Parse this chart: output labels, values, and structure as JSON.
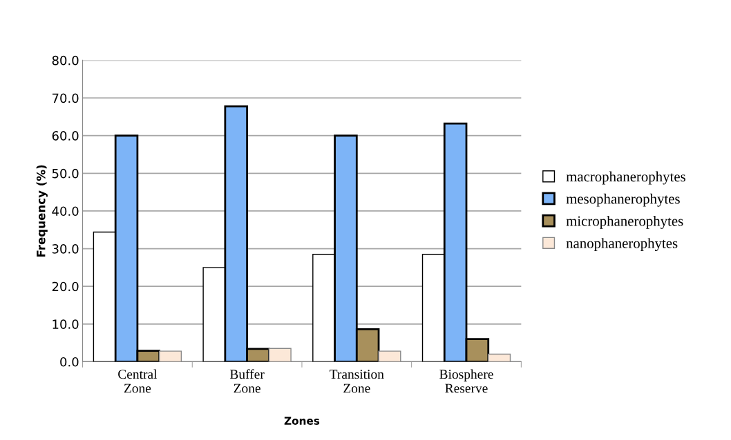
{
  "chart_data": {
    "type": "bar",
    "xlabel": "Zones",
    "ylabel": "Frequency (%)",
    "categories": [
      "Central\nZone",
      "Buffer\nZone",
      "Transition\nZone",
      "Biosphere\nReserve"
    ],
    "series": [
      {
        "name": "macrophanerophytes",
        "color": "#ffffff",
        "values": [
          34.4,
          25.0,
          28.5,
          28.5
        ]
      },
      {
        "name": "mesophanerophytes",
        "color": "#7db4f7",
        "values": [
          60.0,
          67.8,
          60.0,
          63.2
        ]
      },
      {
        "name": "microphanerophytes",
        "color": "#a8905c",
        "values": [
          2.9,
          3.4,
          8.6,
          6.0
        ]
      },
      {
        "name": "nanophanerophytes",
        "color": "#fce8d8",
        "values": [
          2.8,
          3.5,
          2.8,
          2.0
        ]
      }
    ],
    "ylim": [
      0,
      80
    ],
    "yticks": [
      {
        "value": 0,
        "label": "0.0"
      },
      {
        "value": 10,
        "label": "10.0"
      },
      {
        "value": 20,
        "label": "20.0"
      },
      {
        "value": 30,
        "label": "30.0"
      },
      {
        "value": 40,
        "label": "40.0"
      },
      {
        "value": 50,
        "label": "50.0"
      },
      {
        "value": 60,
        "label": "60.0"
      },
      {
        "value": 70,
        "label": "70.0"
      },
      {
        "value": 80,
        "label": "80.0"
      }
    ],
    "grid": "y",
    "legend": "right"
  }
}
